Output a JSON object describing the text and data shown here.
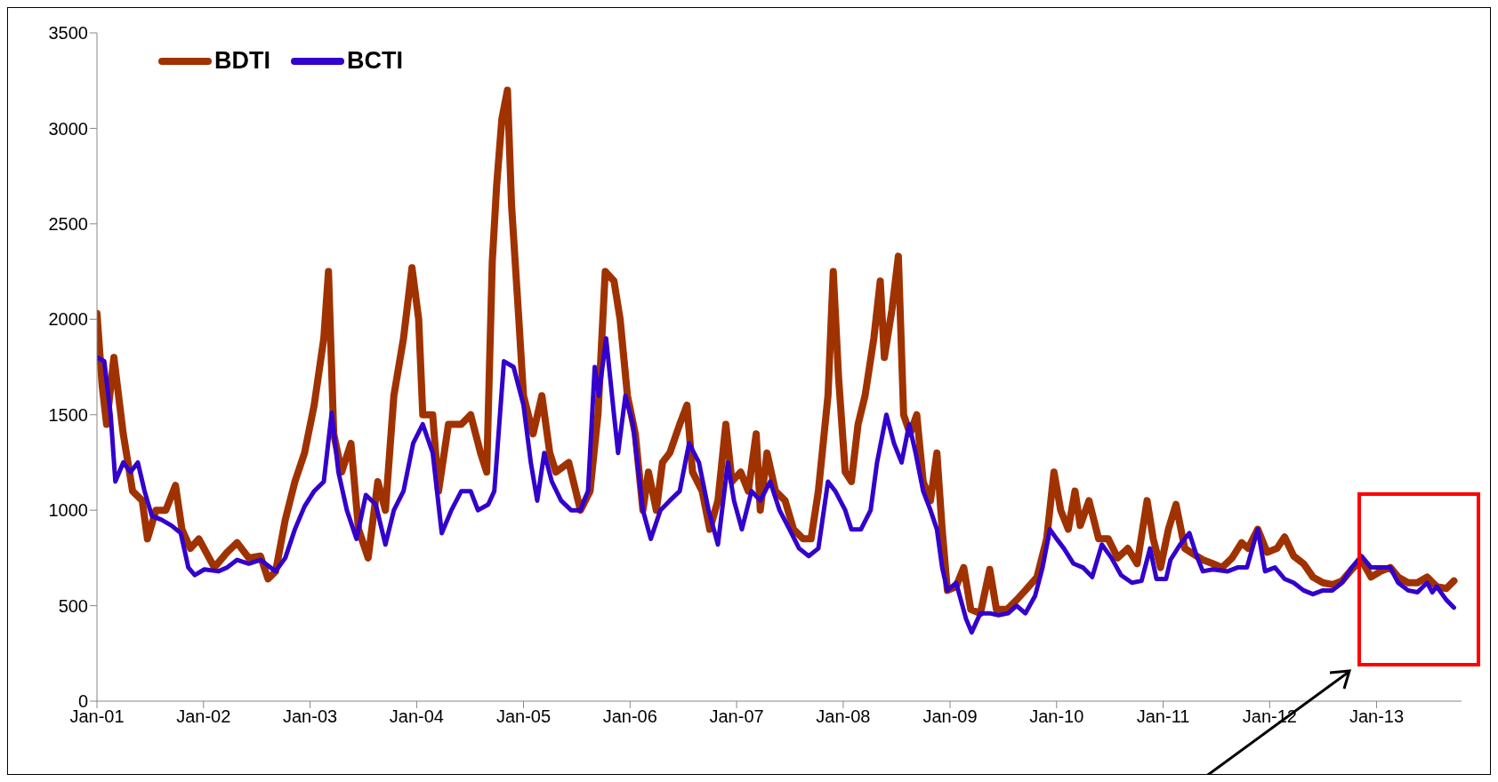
{
  "chart_data": {
    "type": "line",
    "xlim": [
      "2001-01-01",
      "2013-10-19"
    ],
    "xticks": [
      {
        "value": "2001-01-01",
        "label": "Jan-01"
      },
      {
        "value": "2002-01-01",
        "label": "Jan-02"
      },
      {
        "value": "2003-01-01",
        "label": "Jan-03"
      },
      {
        "value": "2004-01-01",
        "label": "Jan-04"
      },
      {
        "value": "2005-01-01",
        "label": "Jan-05"
      },
      {
        "value": "2006-01-01",
        "label": "Jan-06"
      },
      {
        "value": "2007-01-01",
        "label": "Jan-07"
      },
      {
        "value": "2008-01-01",
        "label": "Jan-08"
      },
      {
        "value": "2009-01-01",
        "label": "Jan-09"
      },
      {
        "value": "2010-01-01",
        "label": "Jan-10"
      },
      {
        "value": "2011-01-01",
        "label": "Jan-11"
      },
      {
        "value": "2012-01-01",
        "label": "Jan-12"
      },
      {
        "value": "2013-01-01",
        "label": "Jan-13"
      }
    ],
    "ylim": [
      0,
      3500
    ],
    "yticks": [
      0,
      500,
      1000,
      1500,
      2000,
      2500,
      3000,
      3500
    ],
    "legend": "top left",
    "line_style": "solid",
    "series": [
      {
        "name": "BDTI",
        "color": "#a03200",
        "x": [
          "2001-01-01",
          "2001-01-19",
          "2001-02-03",
          "2001-02-28",
          "2001-04-01",
          "2001-05-03",
          "2001-06-05",
          "2001-06-23",
          "2001-07-22",
          "2001-08-25",
          "2001-09-27",
          "2001-10-19",
          "2001-11-17",
          "2001-12-16",
          "2002-02-07",
          "2002-03-23",
          "2002-04-26",
          "2002-06-05",
          "2002-07-15",
          "2002-08-10",
          "2002-09-05",
          "2002-10-08",
          "2002-11-10",
          "2002-12-13",
          "2003-01-15",
          "2003-02-17",
          "2003-03-05",
          "2003-03-23",
          "2003-04-19",
          "2003-05-21",
          "2003-06-16",
          "2003-07-19",
          "2003-08-21",
          "2003-09-16",
          "2003-10-15",
          "2003-11-17",
          "2003-12-16",
          "2004-01-08",
          "2004-01-22",
          "2004-02-25",
          "2004-03-16",
          "2004-04-19",
          "2004-06-02",
          "2004-07-04",
          "2004-08-07",
          "2004-08-28",
          "2004-09-16",
          "2004-10-01",
          "2004-10-19",
          "2004-11-07",
          "2004-11-21",
          "2004-12-16",
          "2005-01-01",
          "2005-02-03",
          "2005-03-05",
          "2005-04-01",
          "2005-04-22",
          "2005-06-05",
          "2005-07-15",
          "2005-08-17",
          "2005-09-13",
          "2005-10-08",
          "2005-11-07",
          "2005-11-28",
          "2005-12-23",
          "2006-01-19",
          "2006-02-14",
          "2006-03-05",
          "2006-04-01",
          "2006-04-22",
          "2006-05-17",
          "2006-06-20",
          "2006-07-15",
          "2006-08-03",
          "2006-09-05",
          "2006-10-01",
          "2006-10-29",
          "2006-11-25",
          "2006-12-16",
          "2007-01-15",
          "2007-02-10",
          "2007-03-09",
          "2007-03-23",
          "2007-04-15",
          "2007-05-14",
          "2007-06-16",
          "2007-07-15",
          "2007-08-17",
          "2007-09-13",
          "2007-10-08",
          "2007-11-10",
          "2007-11-28",
          "2007-12-16",
          "2008-01-08",
          "2008-01-29",
          "2008-02-21",
          "2008-03-16",
          "2008-04-15",
          "2008-05-07",
          "2008-05-21",
          "2008-06-16",
          "2008-07-08",
          "2008-07-26",
          "2008-08-17",
          "2008-09-09",
          "2008-10-01",
          "2008-10-26",
          "2008-11-17",
          "2008-12-05",
          "2008-12-23",
          "2009-01-22",
          "2009-02-17",
          "2009-03-13",
          "2009-04-15",
          "2009-05-17",
          "2009-06-09",
          "2009-07-15",
          "2009-08-17",
          "2009-09-16",
          "2009-10-26",
          "2009-11-28",
          "2009-12-23",
          "2010-01-15",
          "2010-02-10",
          "2010-03-05",
          "2010-03-23",
          "2010-04-22",
          "2010-05-25",
          "2010-06-27",
          "2010-07-29",
          "2010-09-02",
          "2010-10-04",
          "2010-11-07",
          "2010-11-28",
          "2010-12-23",
          "2011-01-19",
          "2011-02-14",
          "2011-03-16",
          "2011-04-15",
          "2011-05-17",
          "2011-06-20",
          "2011-07-22",
          "2011-08-25",
          "2011-09-27",
          "2011-10-19",
          "2011-11-21",
          "2011-12-23",
          "2012-01-26",
          "2012-02-21",
          "2012-03-23",
          "2012-04-26",
          "2012-05-28",
          "2012-07-01",
          "2012-08-03",
          "2012-09-05",
          "2012-10-08",
          "2012-11-10",
          "2012-12-13",
          "2013-01-15",
          "2013-02-17",
          "2013-03-16",
          "2013-04-19",
          "2013-05-21",
          "2013-06-23",
          "2013-07-26",
          "2013-08-28",
          "2013-09-23"
        ],
        "values": [
          2030,
          1650,
          1450,
          1800,
          1400,
          1100,
          1050,
          850,
          1000,
          1000,
          1130,
          900,
          800,
          850,
          700,
          780,
          830,
          750,
          760,
          640,
          680,
          950,
          1150,
          1300,
          1550,
          1900,
          2250,
          1400,
          1200,
          1350,
          900,
          750,
          1150,
          1000,
          1600,
          1900,
          2270,
          2000,
          1500,
          1500,
          1100,
          1450,
          1450,
          1500,
          1300,
          1200,
          2300,
          2700,
          3050,
          3200,
          2600,
          2000,
          1600,
          1400,
          1600,
          1300,
          1200,
          1250,
          1000,
          1100,
          1500,
          2250,
          2200,
          2000,
          1600,
          1400,
          1000,
          1200,
          1000,
          1250,
          1300,
          1450,
          1550,
          1200,
          1100,
          900,
          1050,
          1450,
          1150,
          1200,
          1100,
          1400,
          1000,
          1300,
          1100,
          1050,
          900,
          850,
          850,
          1100,
          1600,
          2250,
          1700,
          1200,
          1150,
          1450,
          1600,
          1900,
          2200,
          1800,
          2050,
          2330,
          1500,
          1400,
          1500,
          1150,
          1050,
          1300,
          900,
          580,
          600,
          700,
          480,
          460,
          690,
          480,
          480,
          530,
          580,
          650,
          850,
          1200,
          1000,
          900,
          1100,
          920,
          1050,
          850,
          850,
          750,
          800,
          720,
          1050,
          850,
          700,
          900,
          1030,
          800,
          770,
          740,
          720,
          700,
          750,
          830,
          800,
          900,
          780,
          800,
          860,
          760,
          720,
          650,
          620,
          610,
          630,
          690,
          740,
          650,
          680,
          700,
          650,
          620,
          620,
          650,
          600,
          590,
          630
        ]
      },
      {
        "name": "BCTI",
        "color": "#3300cc",
        "x": [
          "2001-01-01",
          "2001-01-26",
          "2001-02-17",
          "2001-03-05",
          "2001-04-01",
          "2001-04-26",
          "2001-05-21",
          "2001-06-13",
          "2001-07-08",
          "2001-08-10",
          "2001-09-13",
          "2001-10-15",
          "2001-11-10",
          "2001-12-02",
          "2002-01-04",
          "2002-02-21",
          "2002-03-23",
          "2002-04-26",
          "2002-06-05",
          "2002-07-15",
          "2002-09-05",
          "2002-10-08",
          "2002-11-10",
          "2002-12-13",
          "2003-01-15",
          "2003-02-17",
          "2003-03-16",
          "2003-04-08",
          "2003-05-07",
          "2003-06-09",
          "2003-07-11",
          "2003-08-14",
          "2003-09-16",
          "2003-10-15",
          "2003-11-17",
          "2003-12-20",
          "2004-01-22",
          "2004-02-25",
          "2004-03-27",
          "2004-04-29",
          "2004-06-02",
          "2004-07-04",
          "2004-07-29",
          "2004-09-02",
          "2004-09-23",
          "2004-10-26",
          "2004-11-28",
          "2005-01-01",
          "2005-01-26",
          "2005-02-17",
          "2005-03-13",
          "2005-04-08",
          "2005-05-10",
          "2005-06-13",
          "2005-07-15",
          "2005-08-10",
          "2005-09-02",
          "2005-09-16",
          "2005-10-11",
          "2005-11-07",
          "2005-11-21",
          "2005-12-16",
          "2006-01-11",
          "2006-02-14",
          "2006-03-13",
          "2006-04-15",
          "2006-05-17",
          "2006-06-20",
          "2006-07-22",
          "2006-08-25",
          "2006-09-27",
          "2006-10-29",
          "2006-12-02",
          "2006-12-23",
          "2007-01-19",
          "2007-02-21",
          "2007-03-23",
          "2007-04-26",
          "2007-05-28",
          "2007-07-01",
          "2007-08-03",
          "2007-09-05",
          "2007-10-08",
          "2007-11-10",
          "2007-12-05",
          "2008-01-08",
          "2008-01-29",
          "2008-03-02",
          "2008-04-04",
          "2008-04-26",
          "2008-05-28",
          "2008-06-23",
          "2008-07-19",
          "2008-08-14",
          "2008-09-05",
          "2008-10-01",
          "2008-10-26",
          "2008-11-17",
          "2008-12-05",
          "2008-12-23",
          "2009-01-22",
          "2009-02-25",
          "2009-03-16",
          "2009-04-15",
          "2009-05-17",
          "2009-06-16",
          "2009-07-19",
          "2009-08-17",
          "2009-09-16",
          "2009-10-19",
          "2009-11-14",
          "2009-12-09",
          "2010-01-01",
          "2010-01-26",
          "2010-02-28",
          "2010-04-01",
          "2010-05-03",
          "2010-06-05",
          "2010-07-08",
          "2010-08-10",
          "2010-09-16",
          "2010-10-19",
          "2010-11-17",
          "2010-12-09",
          "2011-01-11",
          "2011-01-26",
          "2011-02-28",
          "2011-04-01",
          "2011-04-26",
          "2011-05-17",
          "2011-06-20",
          "2011-08-10",
          "2011-09-13",
          "2011-10-15",
          "2011-11-21",
          "2011-12-16",
          "2012-01-19",
          "2012-02-21",
          "2012-03-23",
          "2012-04-26",
          "2012-05-28",
          "2012-07-01",
          "2012-08-03",
          "2012-09-05",
          "2012-10-08",
          "2012-11-10",
          "2012-12-13",
          "2013-01-15",
          "2013-02-17",
          "2013-03-16",
          "2013-04-19",
          "2013-05-21",
          "2013-06-23",
          "2013-07-11",
          "2013-07-26",
          "2013-08-28",
          "2013-09-23"
        ],
        "values": [
          1800,
          1780,
          1500,
          1150,
          1250,
          1200,
          1250,
          1100,
          970,
          950,
          920,
          880,
          700,
          660,
          690,
          680,
          700,
          740,
          720,
          740,
          680,
          750,
          900,
          1020,
          1100,
          1150,
          1510,
          1200,
          1000,
          850,
          1080,
          1030,
          820,
          1000,
          1100,
          1350,
          1450,
          1300,
          880,
          1000,
          1100,
          1100,
          1000,
          1030,
          1100,
          1780,
          1750,
          1550,
          1250,
          1050,
          1300,
          1150,
          1050,
          1000,
          1000,
          1100,
          1750,
          1600,
          1900,
          1500,
          1300,
          1600,
          1450,
          1000,
          850,
          1000,
          1050,
          1100,
          1350,
          1250,
          1000,
          820,
          1250,
          1050,
          900,
          1100,
          1050,
          1150,
          1000,
          900,
          800,
          760,
          800,
          1150,
          1100,
          1000,
          900,
          900,
          1000,
          1250,
          1500,
          1350,
          1250,
          1450,
          1300,
          1100,
          1000,
          900,
          700,
          580,
          620,
          430,
          360,
          460,
          460,
          450,
          460,
          500,
          460,
          550,
          700,
          900,
          850,
          800,
          720,
          700,
          650,
          820,
          750,
          660,
          620,
          630,
          800,
          640,
          640,
          740,
          820,
          880,
          760,
          680,
          690,
          680,
          700,
          700,
          900,
          680,
          700,
          640,
          620,
          580,
          560,
          580,
          580,
          620,
          700,
          760,
          700,
          700,
          700,
          620,
          580,
          570,
          620,
          570,
          600,
          530,
          490
        ]
      }
    ]
  }
}
